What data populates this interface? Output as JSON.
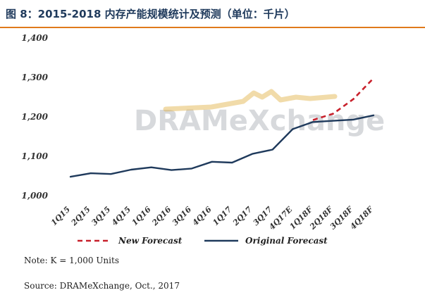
{
  "header": {
    "title": "图 8：2015-2018 内存产能规模统计及预测（单位：千片）"
  },
  "watermark": {
    "text": "DRAMeXchange"
  },
  "chart_data": {
    "type": "line",
    "categories": [
      "1Q15",
      "2Q15",
      "3Q15",
      "4Q15",
      "1Q16",
      "2Q16",
      "3Q16",
      "4Q16",
      "1Q17",
      "2Q17",
      "3Q17",
      "4Q17E",
      "1Q18F",
      "2Q18F",
      "3Q18F",
      "4Q18F"
    ],
    "series": [
      {
        "name": "New Forecast",
        "color": "#c8202b",
        "style": "dashed",
        "values": [
          null,
          null,
          null,
          null,
          null,
          null,
          null,
          null,
          null,
          null,
          null,
          null,
          1192,
          1208,
          1245,
          1298
        ]
      },
      {
        "name": "Original Forecast",
        "color": "#1f3a5c",
        "style": "solid",
        "values": [
          1048,
          1057,
          1055,
          1066,
          1072,
          1065,
          1069,
          1086,
          1084,
          1106,
          1117,
          1169,
          1187,
          1190,
          1193,
          1204
        ]
      }
    ],
    "yticks": [
      "1,000",
      "1,100",
      "1,200",
      "1,300",
      "1,400"
    ],
    "ylim": [
      1000,
      1400
    ],
    "xlabel": "",
    "ylabel": "",
    "grid": false,
    "legend_position": "bottom"
  },
  "footer": {
    "note": "Note: K = 1,000 Units",
    "source": "Source: DRAMeXchange, Oct., 2017"
  }
}
